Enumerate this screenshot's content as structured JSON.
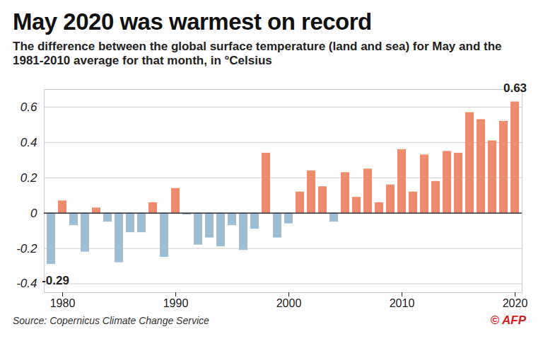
{
  "chart_data": {
    "type": "bar",
    "title": "May 2020 was warmest on record",
    "subtitle": "The difference between the global surface temperature (land and sea) for May and the 1981-2010 average for that month, in °Celsius",
    "source": "Source: Copernicus Climate Change Service",
    "credit": "© AFP",
    "categories": [
      1979,
      1980,
      1981,
      1982,
      1983,
      1984,
      1985,
      1986,
      1987,
      1988,
      1989,
      1990,
      1991,
      1992,
      1993,
      1994,
      1995,
      1996,
      1997,
      1998,
      1999,
      2000,
      2001,
      2002,
      2003,
      2004,
      2005,
      2006,
      2007,
      2008,
      2009,
      2010,
      2011,
      2012,
      2013,
      2014,
      2015,
      2016,
      2017,
      2018,
      2019,
      2020
    ],
    "values": [
      -0.29,
      0.07,
      -0.07,
      -0.22,
      0.03,
      -0.05,
      -0.28,
      -0.11,
      -0.11,
      0.06,
      -0.25,
      0.14,
      -0.01,
      -0.18,
      -0.14,
      -0.19,
      -0.07,
      -0.21,
      -0.09,
      0.34,
      -0.14,
      -0.06,
      0.12,
      0.24,
      0.15,
      -0.05,
      0.23,
      0.09,
      0.25,
      0.06,
      0.16,
      0.36,
      0.12,
      0.33,
      0.18,
      0.35,
      0.34,
      0.57,
      0.53,
      0.41,
      0.52,
      0.63
    ],
    "colors": [
      "#9dbdd3",
      "#ee8c6c",
      "#9dbdd3",
      "#9dbdd3",
      "#ee8c6c",
      "#9dbdd3",
      "#9dbdd3",
      "#9dbdd3",
      "#9dbdd3",
      "#ee8c6c",
      "#9dbdd3",
      "#ee8c6c",
      "#9dbdd3",
      "#9dbdd3",
      "#9dbdd3",
      "#9dbdd3",
      "#9dbdd3",
      "#9dbdd3",
      "#9dbdd3",
      "#ee8c6c",
      "#9dbdd3",
      "#9dbdd3",
      "#ee8c6c",
      "#ee8c6c",
      "#ee8c6c",
      "#9dbdd3",
      "#ee8c6c",
      "#ee8c6c",
      "#ee8c6c",
      "#ee8c6c",
      "#ee8c6c",
      "#ee8c6c",
      "#ee8c6c",
      "#ee8c6c",
      "#ee8c6c",
      "#ee8c6c",
      "#ee8c6c",
      "#ee8c6c",
      "#ee8c6c",
      "#ee8c6c",
      "#ee8c6c",
      "#ee8c6c"
    ],
    "xticks": [
      1980,
      1990,
      2000,
      2010,
      2020
    ],
    "ylim": [
      -0.45,
      0.7
    ],
    "yticks": [
      -0.4,
      -0.2,
      0,
      0.2,
      0.4,
      0.6
    ],
    "grid": true,
    "annotations": [
      {
        "x": 1979,
        "y": -0.29,
        "text": "-0.29"
      },
      {
        "x": 2020,
        "y": 0.63,
        "text": "0.63"
      }
    ]
  }
}
